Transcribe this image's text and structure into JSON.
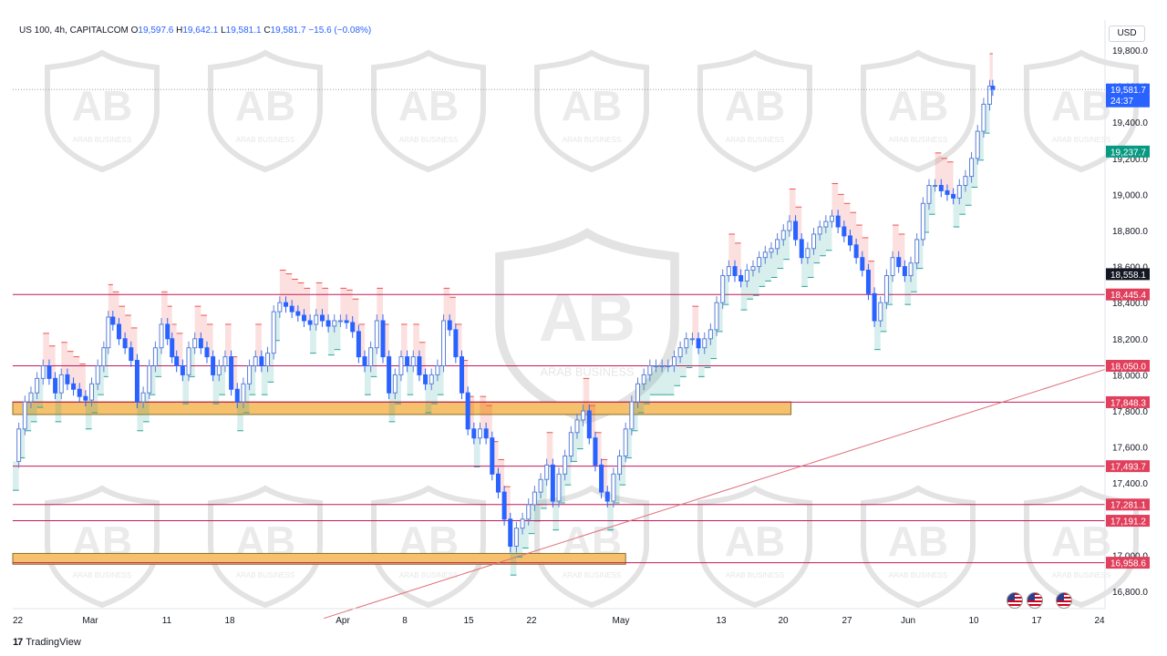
{
  "header": {
    "symbol_line": "US 100, 4h, CAPITALCOM",
    "o_label": "O",
    "o_value": "19,597.6",
    "h_label": "H",
    "h_value": "19,642.1",
    "l_label": "L",
    "l_value": "19,581.1",
    "c_label": "C",
    "c_value": "19,581.7",
    "change": "−15.6 (−0.08%)"
  },
  "currency": "USD",
  "footer": {
    "brand": "TradingView",
    "icon": "tradingview-logo-icon"
  },
  "watermark_text": "ARAB BUSINESS",
  "colors": {
    "level": "#c2185b",
    "zone": "#f5c16c",
    "trend": "#e0707a",
    "up": "#5b7fd6",
    "down": "#2962ff",
    "cloud_up": "#26a69a",
    "cloud_down": "#ef5350",
    "price_tag": "#2962ff",
    "stop_tag": "#089981"
  },
  "chart_data": {
    "type": "line",
    "title": "",
    "xlabel": "",
    "ylabel": "",
    "ylim": [
      16650,
      19900
    ],
    "x_ticks": [
      "22",
      "Mar",
      "11",
      "18",
      "Apr",
      "8",
      "15",
      "22",
      "May",
      "13",
      "20",
      "27",
      "Jun",
      "10",
      "17",
      "24"
    ],
    "y_ticks": [
      "16,800.0",
      "17,000.0",
      "17,200.0",
      "17,400.0",
      "17,600.0",
      "17,800.0",
      "18,000.0",
      "18,200.0",
      "18,400.0",
      "18,600.0",
      "18,800.0",
      "19,000.0",
      "19,200.0",
      "19,400.0",
      "19,600.0",
      "19,800.0"
    ],
    "y_tick_values": [
      16800,
      17000,
      17200,
      17400,
      17600,
      17800,
      18000,
      18200,
      18400,
      18600,
      18800,
      19000,
      19200,
      19400,
      19600,
      19800
    ],
    "price_series": [
      [
        0,
        17520
      ],
      [
        0.4,
        17700
      ],
      [
        0.8,
        17850
      ],
      [
        1.2,
        17900
      ],
      [
        1.6,
        17980
      ],
      [
        2,
        18050
      ],
      [
        2.4,
        17980
      ],
      [
        2.8,
        17900
      ],
      [
        3.2,
        18000
      ],
      [
        3.6,
        17950
      ],
      [
        4,
        17920
      ],
      [
        4.4,
        17880
      ],
      [
        4.8,
        17860
      ],
      [
        5.2,
        17950
      ],
      [
        5.6,
        18050
      ],
      [
        6,
        18150
      ],
      [
        6.3,
        18320
      ],
      [
        6.6,
        18280
      ],
      [
        7,
        18200
      ],
      [
        7.4,
        18150
      ],
      [
        7.8,
        18080
      ],
      [
        8.2,
        17850
      ],
      [
        8.6,
        17900
      ],
      [
        9,
        18050
      ],
      [
        9.4,
        18150
      ],
      [
        9.8,
        18280
      ],
      [
        10.2,
        18200
      ],
      [
        10.5,
        18100
      ],
      [
        10.8,
        18050
      ],
      [
        11.2,
        18000
      ],
      [
        11.6,
        18150
      ],
      [
        12,
        18200
      ],
      [
        12.4,
        18150
      ],
      [
        12.8,
        18100
      ],
      [
        13.2,
        18000
      ],
      [
        13.6,
        18050
      ],
      [
        14,
        18100
      ],
      [
        14.4,
        17920
      ],
      [
        14.8,
        17850
      ],
      [
        15.2,
        17950
      ],
      [
        15.6,
        18050
      ],
      [
        16,
        18100
      ],
      [
        16.4,
        18050
      ],
      [
        16.8,
        18120
      ],
      [
        17.2,
        18350
      ],
      [
        17.6,
        18400
      ],
      [
        18,
        18380
      ],
      [
        18.4,
        18350
      ],
      [
        18.8,
        18330
      ],
      [
        19.2,
        18300
      ],
      [
        19.6,
        18280
      ],
      [
        20,
        18330
      ],
      [
        20.4,
        18300
      ],
      [
        20.8,
        18270
      ],
      [
        21.2,
        18300
      ],
      [
        21.6,
        18300
      ],
      [
        22,
        18290
      ],
      [
        22.4,
        18240
      ],
      [
        22.8,
        18100
      ],
      [
        23.2,
        18050
      ],
      [
        23.6,
        18150
      ],
      [
        24,
        18300
      ],
      [
        24.4,
        18100
      ],
      [
        24.8,
        17900
      ],
      [
        25.2,
        18000
      ],
      [
        25.6,
        18100
      ],
      [
        26,
        18050
      ],
      [
        26.4,
        18100
      ],
      [
        26.8,
        18000
      ],
      [
        27.2,
        17950
      ],
      [
        27.6,
        18000
      ],
      [
        28,
        18050
      ],
      [
        28.4,
        18300
      ],
      [
        28.8,
        18250
      ],
      [
        29.2,
        18100
      ],
      [
        29.6,
        17900
      ],
      [
        30,
        17700
      ],
      [
        30.4,
        17650
      ],
      [
        30.8,
        17700
      ],
      [
        31.2,
        17650
      ],
      [
        31.6,
        17450
      ],
      [
        32,
        17350
      ],
      [
        32.4,
        17200
      ],
      [
        32.8,
        17050
      ],
      [
        33.2,
        17150
      ],
      [
        33.6,
        17200
      ],
      [
        34,
        17280
      ],
      [
        34.4,
        17350
      ],
      [
        34.8,
        17420
      ],
      [
        35.2,
        17500
      ],
      [
        35.6,
        17300
      ],
      [
        36,
        17450
      ],
      [
        36.4,
        17550
      ],
      [
        36.8,
        17680
      ],
      [
        37.2,
        17750
      ],
      [
        37.6,
        17800
      ],
      [
        38,
        17650
      ],
      [
        38.4,
        17500
      ],
      [
        38.8,
        17350
      ],
      [
        39.2,
        17300
      ],
      [
        39.6,
        17450
      ],
      [
        40,
        17550
      ],
      [
        40.4,
        17700
      ],
      [
        40.8,
        17850
      ],
      [
        41.2,
        17950
      ],
      [
        41.6,
        18000
      ],
      [
        42,
        18050
      ],
      [
        42.4,
        18050
      ],
      [
        42.8,
        18050
      ],
      [
        43.2,
        18050
      ],
      [
        43.6,
        18100
      ],
      [
        44,
        18150
      ],
      [
        44.4,
        18200
      ],
      [
        44.8,
        18200
      ],
      [
        45.2,
        18150
      ],
      [
        45.6,
        18200
      ],
      [
        46,
        18250
      ],
      [
        46.4,
        18400
      ],
      [
        46.8,
        18550
      ],
      [
        47.2,
        18600
      ],
      [
        47.6,
        18550
      ],
      [
        48,
        18520
      ],
      [
        48.4,
        18580
      ],
      [
        48.8,
        18600
      ],
      [
        49.2,
        18650
      ],
      [
        49.6,
        18680
      ],
      [
        50,
        18700
      ],
      [
        50.4,
        18750
      ],
      [
        50.8,
        18800
      ],
      [
        51.2,
        18850
      ],
      [
        51.6,
        18750
      ],
      [
        52,
        18650
      ],
      [
        52.4,
        18700
      ],
      [
        52.8,
        18780
      ],
      [
        53.2,
        18820
      ],
      [
        53.6,
        18850
      ],
      [
        54,
        18880
      ],
      [
        54.4,
        18820
      ],
      [
        54.8,
        18770
      ],
      [
        55.2,
        18720
      ],
      [
        55.6,
        18650
      ],
      [
        56,
        18580
      ],
      [
        56.4,
        18450
      ],
      [
        56.8,
        18300
      ],
      [
        57.2,
        18400
      ],
      [
        57.6,
        18550
      ],
      [
        58,
        18650
      ],
      [
        58.4,
        18600
      ],
      [
        58.8,
        18550
      ],
      [
        59.2,
        18620
      ],
      [
        59.6,
        18750
      ],
      [
        60,
        18950
      ],
      [
        60.4,
        19050
      ],
      [
        60.8,
        19050
      ],
      [
        61.2,
        19020
      ],
      [
        61.6,
        19000
      ],
      [
        62,
        18980
      ],
      [
        62.4,
        19050
      ],
      [
        62.8,
        19100
      ],
      [
        63.2,
        19200
      ],
      [
        63.6,
        19350
      ],
      [
        64,
        19500
      ],
      [
        64.4,
        19600
      ],
      [
        64.6,
        19581.7
      ]
    ],
    "levels": [
      {
        "value": 18445.4,
        "label": "18,445.4"
      },
      {
        "value": 18050.0,
        "label": "18,050.0"
      },
      {
        "value": 17848.3,
        "label": "17,848.3"
      },
      {
        "value": 17493.7,
        "label": "17,493.7"
      },
      {
        "value": 17281.1,
        "label": "17,281.1"
      },
      {
        "value": 17191.2,
        "label": "17,191.2"
      },
      {
        "value": 16958.6,
        "label": "16,958.6"
      }
    ],
    "zones": [
      {
        "from": 17780,
        "to": 17850,
        "x_end": 51.3
      },
      {
        "from": 16950,
        "to": 17010,
        "x_end": 40.4
      }
    ],
    "trendline": {
      "x1": 20.5,
      "y1": 16650,
      "x2": 72,
      "y2": 18030
    },
    "last_price": {
      "value": 19581.7,
      "label": "19,581.7",
      "timer": "24:37"
    },
    "stop_price": {
      "value": 19237.7,
      "label": "19,237.7"
    },
    "crosshair_price": {
      "value": 18558.1,
      "label": "18,558.1"
    }
  }
}
